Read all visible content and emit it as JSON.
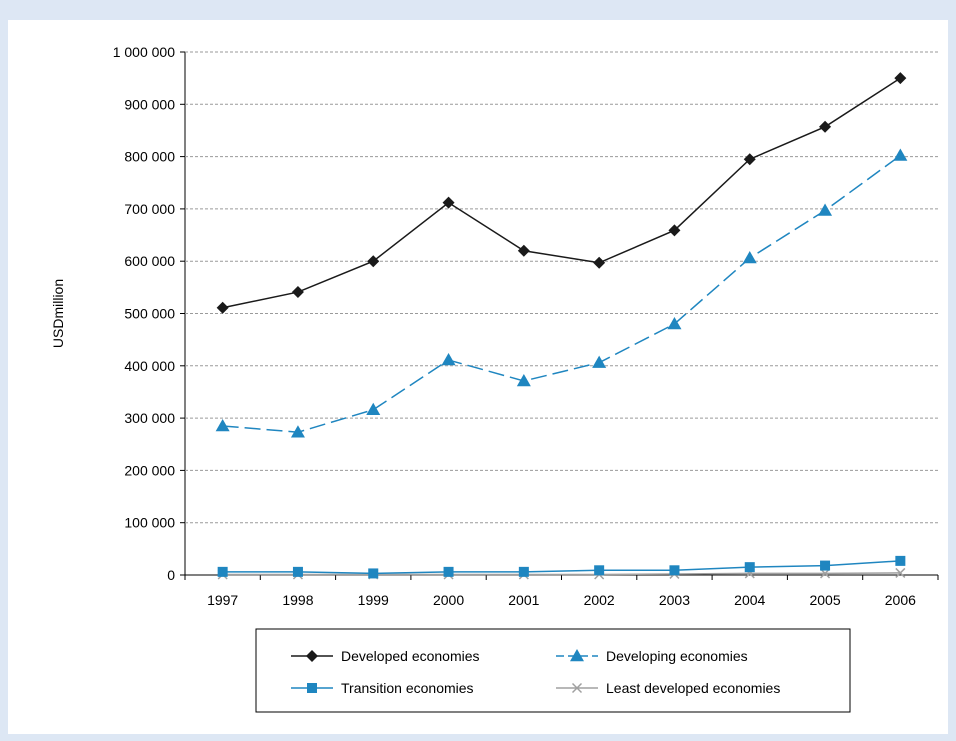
{
  "colors": {
    "page_background": "#dde7f4",
    "developed": "#1a1a1a",
    "developing": "#1f86c0",
    "transition": "#1f86c0",
    "least_developed": "#a0a0a0",
    "grid": "#9a9a9a"
  },
  "chart_data": {
    "type": "line",
    "title": "",
    "xlabel": "",
    "ylabel": "USDmillion",
    "x": [
      "1997",
      "1998",
      "1999",
      "2000",
      "2001",
      "2002",
      "2003",
      "2004",
      "2005",
      "2006"
    ],
    "ylim": [
      0,
      1000000
    ],
    "yticks": [
      0,
      100000,
      200000,
      300000,
      400000,
      500000,
      600000,
      700000,
      800000,
      900000,
      1000000
    ],
    "ytick_labels": [
      "0",
      "100 000",
      "200 000",
      "300 000",
      "400 000",
      "500 000",
      "600 000",
      "700 000",
      "800 000",
      "900 000",
      "1 000 000"
    ],
    "grid": "horizontal dashed",
    "legend_position": "bottom",
    "series": [
      {
        "name": "Developed economies",
        "color": "#1a1a1a",
        "marker": "diamond",
        "line_style": "solid",
        "values": [
          511000,
          541000,
          600000,
          712000,
          620000,
          597000,
          659000,
          795000,
          857000,
          950000
        ]
      },
      {
        "name": "Developing economies",
        "color": "#1f86c0",
        "marker": "triangle",
        "line_style": "dashed",
        "values": [
          285000,
          273000,
          316000,
          411000,
          371000,
          406000,
          480000,
          606000,
          697000,
          802000
        ]
      },
      {
        "name": "Transition economies",
        "color": "#1f86c0",
        "marker": "square",
        "line_style": "solid",
        "values": [
          6000,
          6000,
          3000,
          6000,
          6000,
          9000,
          9000,
          15000,
          18000,
          27000
        ]
      },
      {
        "name": "Least developed economies",
        "color": "#a0a0a0",
        "marker": "x",
        "line_style": "solid",
        "values": [
          1000,
          1000,
          1000,
          1000,
          1000,
          1000,
          2000,
          3000,
          3000,
          4000
        ]
      }
    ]
  }
}
